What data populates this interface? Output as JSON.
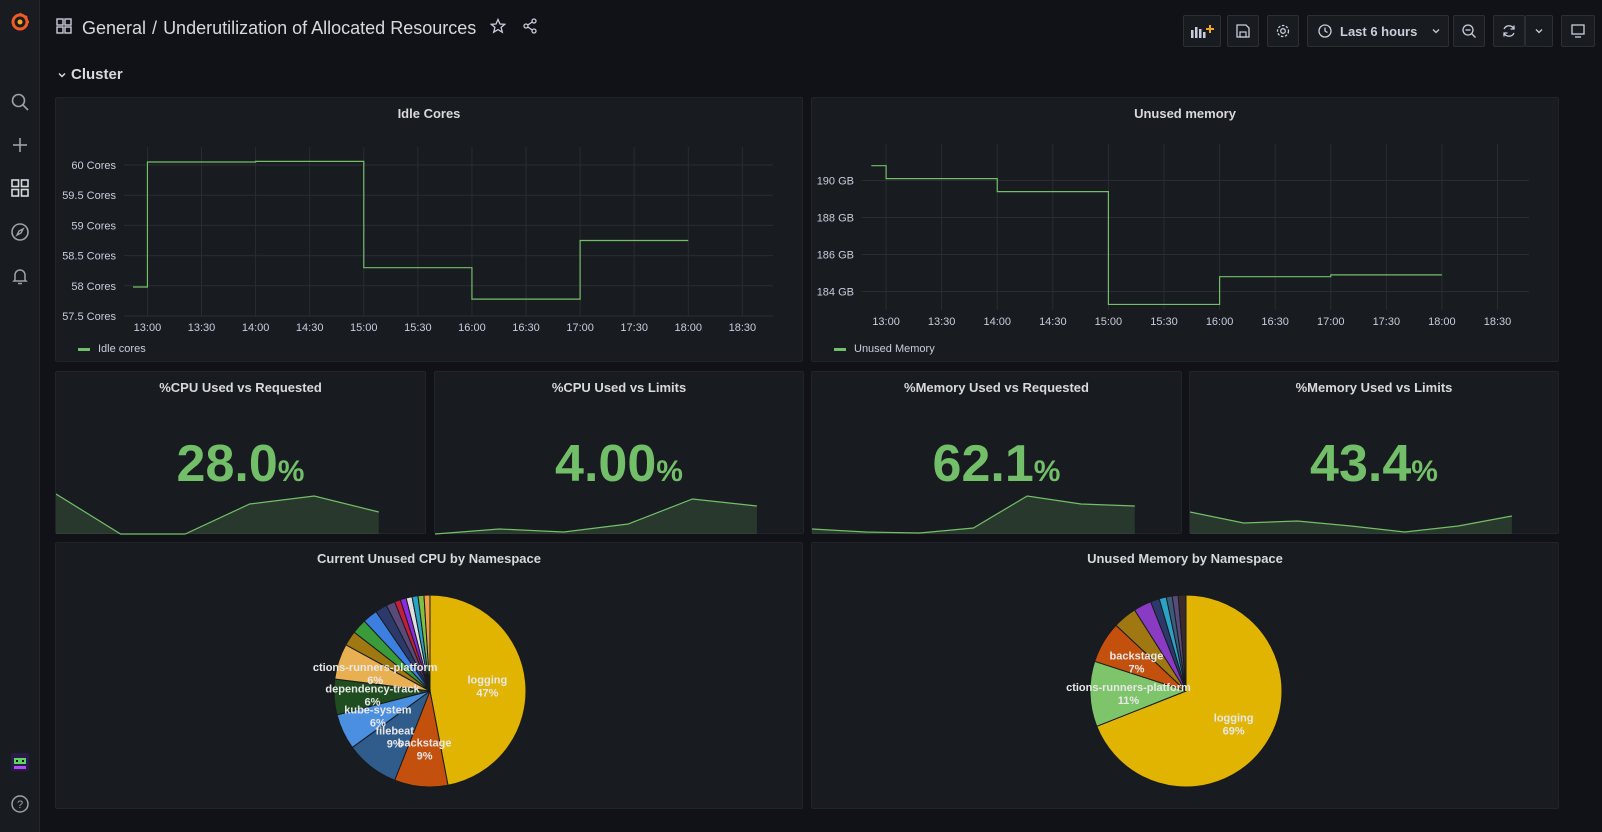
{
  "breadcrumb": {
    "folder": "General",
    "separator": "/",
    "title": "Underutilization of Allocated Resources"
  },
  "toolbar": {
    "time_range": "Last 6 hours"
  },
  "row": {
    "title": "Cluster"
  },
  "colors": {
    "green": "#73bf69",
    "bg": "#111217",
    "panel": "#181b1f",
    "orange": "#f05a28"
  },
  "panels": {
    "idle_cores": {
      "title": "Idle Cores",
      "legend": "Idle cores"
    },
    "unused_memory": {
      "title": "Unused memory",
      "legend": "Unused Memory"
    },
    "cpu_req": {
      "title": "%CPU Used vs Requested",
      "value": "28.0",
      "unit": "%"
    },
    "cpu_lim": {
      "title": "%CPU Used vs Limits",
      "value": "4.00",
      "unit": "%"
    },
    "mem_req": {
      "title": "%Memory Used vs Requested",
      "value": "62.1",
      "unit": "%"
    },
    "mem_lim": {
      "title": "%Memory Used vs Limits",
      "value": "43.4",
      "unit": "%"
    },
    "cpu_pie": {
      "title": "Current Unused CPU by Namespace"
    },
    "mem_pie": {
      "title": "Unused Memory by Namespace"
    }
  },
  "chart_data": [
    {
      "type": "line",
      "panel": "idle_cores",
      "x_ticks": [
        "13:00",
        "13:30",
        "14:00",
        "14:30",
        "15:00",
        "15:30",
        "16:00",
        "16:30",
        "17:00",
        "17:30",
        "18:00",
        "18:30"
      ],
      "y_ticks": [
        "60 Cores",
        "59.5 Cores",
        "59 Cores",
        "58.5 Cores",
        "58 Cores",
        "57.5 Cores"
      ],
      "ylim": [
        57.5,
        60
      ],
      "series": [
        {
          "name": "Idle cores",
          "step": true,
          "x": [
            "12:52",
            "13:00",
            "14:00",
            "15:00",
            "16:00",
            "17:00",
            "18:00"
          ],
          "values": [
            57.98,
            60.05,
            60.06,
            58.3,
            57.78,
            58.75,
            58.75
          ]
        }
      ]
    },
    {
      "type": "line",
      "panel": "unused_memory",
      "x_ticks": [
        "13:00",
        "13:30",
        "14:00",
        "14:30",
        "15:00",
        "15:30",
        "16:00",
        "16:30",
        "17:00",
        "17:30",
        "18:00",
        "18:30"
      ],
      "y_ticks": [
        "190 GB",
        "188 GB",
        "186 GB",
        "184 GB"
      ],
      "ylim": [
        183,
        191
      ],
      "series": [
        {
          "name": "Unused Memory",
          "step": true,
          "x": [
            "12:52",
            "13:00",
            "14:00",
            "15:00",
            "16:00",
            "17:00",
            "18:00"
          ],
          "values": [
            190.8,
            190.1,
            189.4,
            183.3,
            184.8,
            184.9,
            184.9
          ]
        }
      ]
    },
    {
      "type": "area",
      "panel": "cpu_req",
      "values": [
        40,
        0,
        0,
        30,
        38,
        22
      ]
    },
    {
      "type": "area",
      "panel": "cpu_lim",
      "values": [
        0,
        5,
        2,
        10,
        35,
        28
      ]
    },
    {
      "type": "area",
      "panel": "mem_req",
      "values": [
        5,
        2,
        1,
        6,
        38,
        30,
        28
      ]
    },
    {
      "type": "area",
      "panel": "mem_lim",
      "values": [
        22,
        11,
        13,
        8,
        2,
        8,
        18
      ]
    },
    {
      "type": "pie",
      "panel": "cpu_pie",
      "slices": [
        {
          "name": "logging",
          "label": "logging",
          "pct": "47%",
          "value": 47,
          "color": "#e0b400"
        },
        {
          "name": "backstage",
          "label": "backstage",
          "pct": "9%",
          "value": 9,
          "color": "#c4500d"
        },
        {
          "name": "filebeat",
          "label": "filebeat",
          "pct": "9%",
          "value": 9,
          "color": "#2f5c8a"
        },
        {
          "name": "kube-system",
          "label": "kube-system",
          "pct": "6%",
          "value": 6,
          "color": "#4a8fe0"
        },
        {
          "name": "dependency-track",
          "label": "dependency-track",
          "pct": "6%",
          "value": 6,
          "color": "#1f4d1f"
        },
        {
          "name": "actions-runners-platform",
          "label": "ctions-runners-platform",
          "pct": "6%",
          "value": 6,
          "color": "#e8b050"
        },
        {
          "name": "s7",
          "value": 2.5,
          "color": "#a07812"
        },
        {
          "name": "s8",
          "value": 2.5,
          "color": "#3a9b3a"
        },
        {
          "name": "s9",
          "value": 2.5,
          "color": "#3d7fe0"
        },
        {
          "name": "s10",
          "value": 2,
          "color": "#2b3a6b"
        },
        {
          "name": "s11",
          "value": 1.5,
          "color": "#5a4a7a"
        },
        {
          "name": "s12",
          "value": 1,
          "color": "#c41e3a"
        },
        {
          "name": "s13",
          "value": 1,
          "color": "#8a2be2"
        },
        {
          "name": "s14",
          "value": 1,
          "color": "#e0e0e0"
        },
        {
          "name": "s15",
          "value": 1,
          "color": "#2ba3c4"
        },
        {
          "name": "s16",
          "value": 1,
          "color": "#80c040"
        },
        {
          "name": "s17",
          "value": 1,
          "color": "#f0a040"
        }
      ]
    },
    {
      "type": "pie",
      "panel": "mem_pie",
      "slices": [
        {
          "name": "logging",
          "label": "logging",
          "pct": "69%",
          "value": 69,
          "color": "#e0b400"
        },
        {
          "name": "actions-runners-platform",
          "label": "ctions-runners-platform",
          "pct": "11%",
          "value": 11,
          "color": "#7ec46a"
        },
        {
          "name": "backstage",
          "label": "backstage",
          "pct": "7%",
          "value": 7,
          "color": "#c4500d"
        },
        {
          "name": "s4",
          "value": 4,
          "color": "#a07812"
        },
        {
          "name": "s5",
          "value": 3,
          "color": "#8a3bc4"
        },
        {
          "name": "s6",
          "value": 1.5,
          "color": "#2b3a6b"
        },
        {
          "name": "s7",
          "value": 1.2,
          "color": "#2ba3c4"
        },
        {
          "name": "s8",
          "value": 1,
          "color": "#3d5a7a"
        },
        {
          "name": "s9",
          "value": 1,
          "color": "#5a4a7a"
        },
        {
          "name": "s10",
          "value": 1.3,
          "color": "#3a2a2a"
        }
      ]
    }
  ]
}
